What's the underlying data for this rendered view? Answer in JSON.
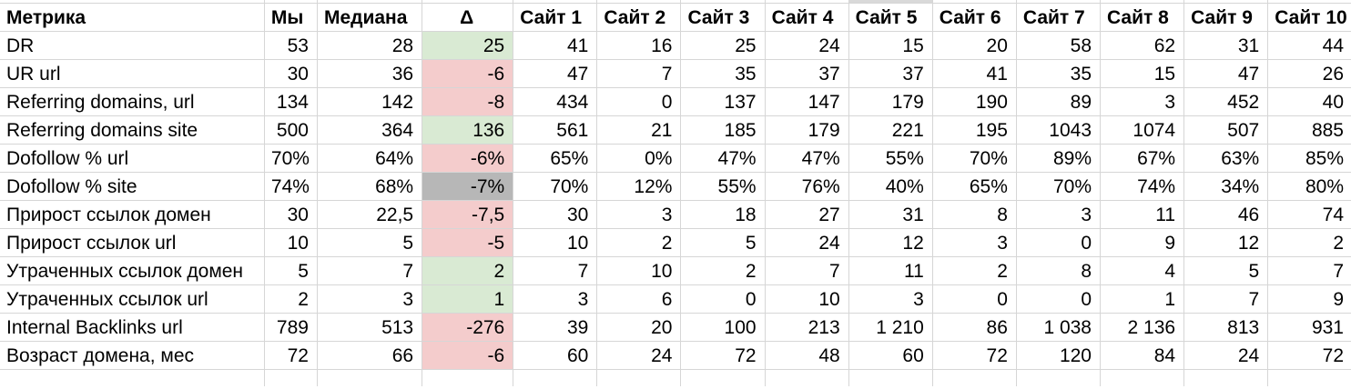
{
  "colors": {
    "positive": "#d9ead3",
    "negative": "#f4cccc",
    "neutral": "#b7b7b7",
    "top_strip_cell": "#d9d9d9"
  },
  "table": {
    "top_strip_gray_above_column": "Сайт 5",
    "columns": [
      {
        "key": "metric",
        "label": "Метрика"
      },
      {
        "key": "us",
        "label": "Мы"
      },
      {
        "key": "median",
        "label": "Медиана"
      },
      {
        "key": "delta",
        "label": "Δ"
      },
      {
        "key": "site1",
        "label": "Сайт 1"
      },
      {
        "key": "site2",
        "label": "Сайт 2"
      },
      {
        "key": "site3",
        "label": "Сайт 3"
      },
      {
        "key": "site4",
        "label": "Сайт 4"
      },
      {
        "key": "site5",
        "label": "Сайт 5"
      },
      {
        "key": "site6",
        "label": "Сайт 6"
      },
      {
        "key": "site7",
        "label": "Сайт 7"
      },
      {
        "key": "site8",
        "label": "Сайт 8"
      },
      {
        "key": "site9",
        "label": "Сайт 9"
      },
      {
        "key": "site10",
        "label": "Сайт 10"
      }
    ],
    "rows": [
      {
        "metric": "DR",
        "us": "53",
        "median": "28",
        "delta": "25",
        "delta_state": "positive",
        "sites": [
          "41",
          "16",
          "25",
          "24",
          "15",
          "20",
          "58",
          "62",
          "31",
          "44"
        ]
      },
      {
        "metric": "UR url",
        "us": "30",
        "median": "36",
        "delta": "-6",
        "delta_state": "negative",
        "sites": [
          "47",
          "7",
          "35",
          "37",
          "37",
          "41",
          "35",
          "15",
          "47",
          "26"
        ]
      },
      {
        "metric": "Referring domains, url",
        "us": "134",
        "median": "142",
        "delta": "-8",
        "delta_state": "negative",
        "sites": [
          "434",
          "0",
          "137",
          "147",
          "179",
          "190",
          "89",
          "3",
          "452",
          "40"
        ]
      },
      {
        "metric": "Referring domains site",
        "us": "500",
        "median": "364",
        "delta": "136",
        "delta_state": "positive",
        "sites": [
          "561",
          "21",
          "185",
          "179",
          "221",
          "195",
          "1043",
          "1074",
          "507",
          "885"
        ]
      },
      {
        "metric": "Dofollow % url",
        "us": "70%",
        "median": "64%",
        "delta": "-6%",
        "delta_state": "negative",
        "sites": [
          "65%",
          "0%",
          "47%",
          "47%",
          "55%",
          "70%",
          "89%",
          "67%",
          "63%",
          "85%"
        ]
      },
      {
        "metric": "Dofollow % site",
        "us": "74%",
        "median": "68%",
        "delta": "-7%",
        "delta_state": "neutral",
        "sites": [
          "70%",
          "12%",
          "55%",
          "76%",
          "40%",
          "65%",
          "70%",
          "74%",
          "34%",
          "80%"
        ]
      },
      {
        "metric": "Прирост ссылок домен",
        "us": "30",
        "median": "22,5",
        "delta": "-7,5",
        "delta_state": "negative",
        "sites": [
          "30",
          "3",
          "18",
          "27",
          "31",
          "8",
          "3",
          "11",
          "46",
          "74"
        ]
      },
      {
        "metric": "Прирост ссылок url",
        "us": "10",
        "median": "5",
        "delta": "-5",
        "delta_state": "negative",
        "sites": [
          "10",
          "2",
          "5",
          "24",
          "12",
          "3",
          "0",
          "9",
          "12",
          "2"
        ]
      },
      {
        "metric": "Утраченных ссылок домен",
        "us": "5",
        "median": "7",
        "delta": "2",
        "delta_state": "positive",
        "sites": [
          "7",
          "10",
          "2",
          "7",
          "11",
          "2",
          "8",
          "4",
          "5",
          "7"
        ]
      },
      {
        "metric": "Утраченных ссылок url",
        "us": "2",
        "median": "3",
        "delta": "1",
        "delta_state": "positive",
        "sites": [
          "3",
          "6",
          "0",
          "10",
          "3",
          "0",
          "0",
          "1",
          "7",
          "9"
        ]
      },
      {
        "metric": "Internal Backlinks url",
        "us": "789",
        "median": "513",
        "delta": "-276",
        "delta_state": "negative",
        "sites": [
          "39",
          "20",
          "100",
          "213",
          "1 210",
          "86",
          "1 038",
          "2 136",
          "813",
          "931"
        ]
      },
      {
        "metric": "Возраст домена, мес",
        "us": "72",
        "median": "66",
        "delta": "-6",
        "delta_state": "negative",
        "sites": [
          "60",
          "24",
          "72",
          "48",
          "60",
          "72",
          "120",
          "84",
          "24",
          "72"
        ]
      }
    ]
  }
}
